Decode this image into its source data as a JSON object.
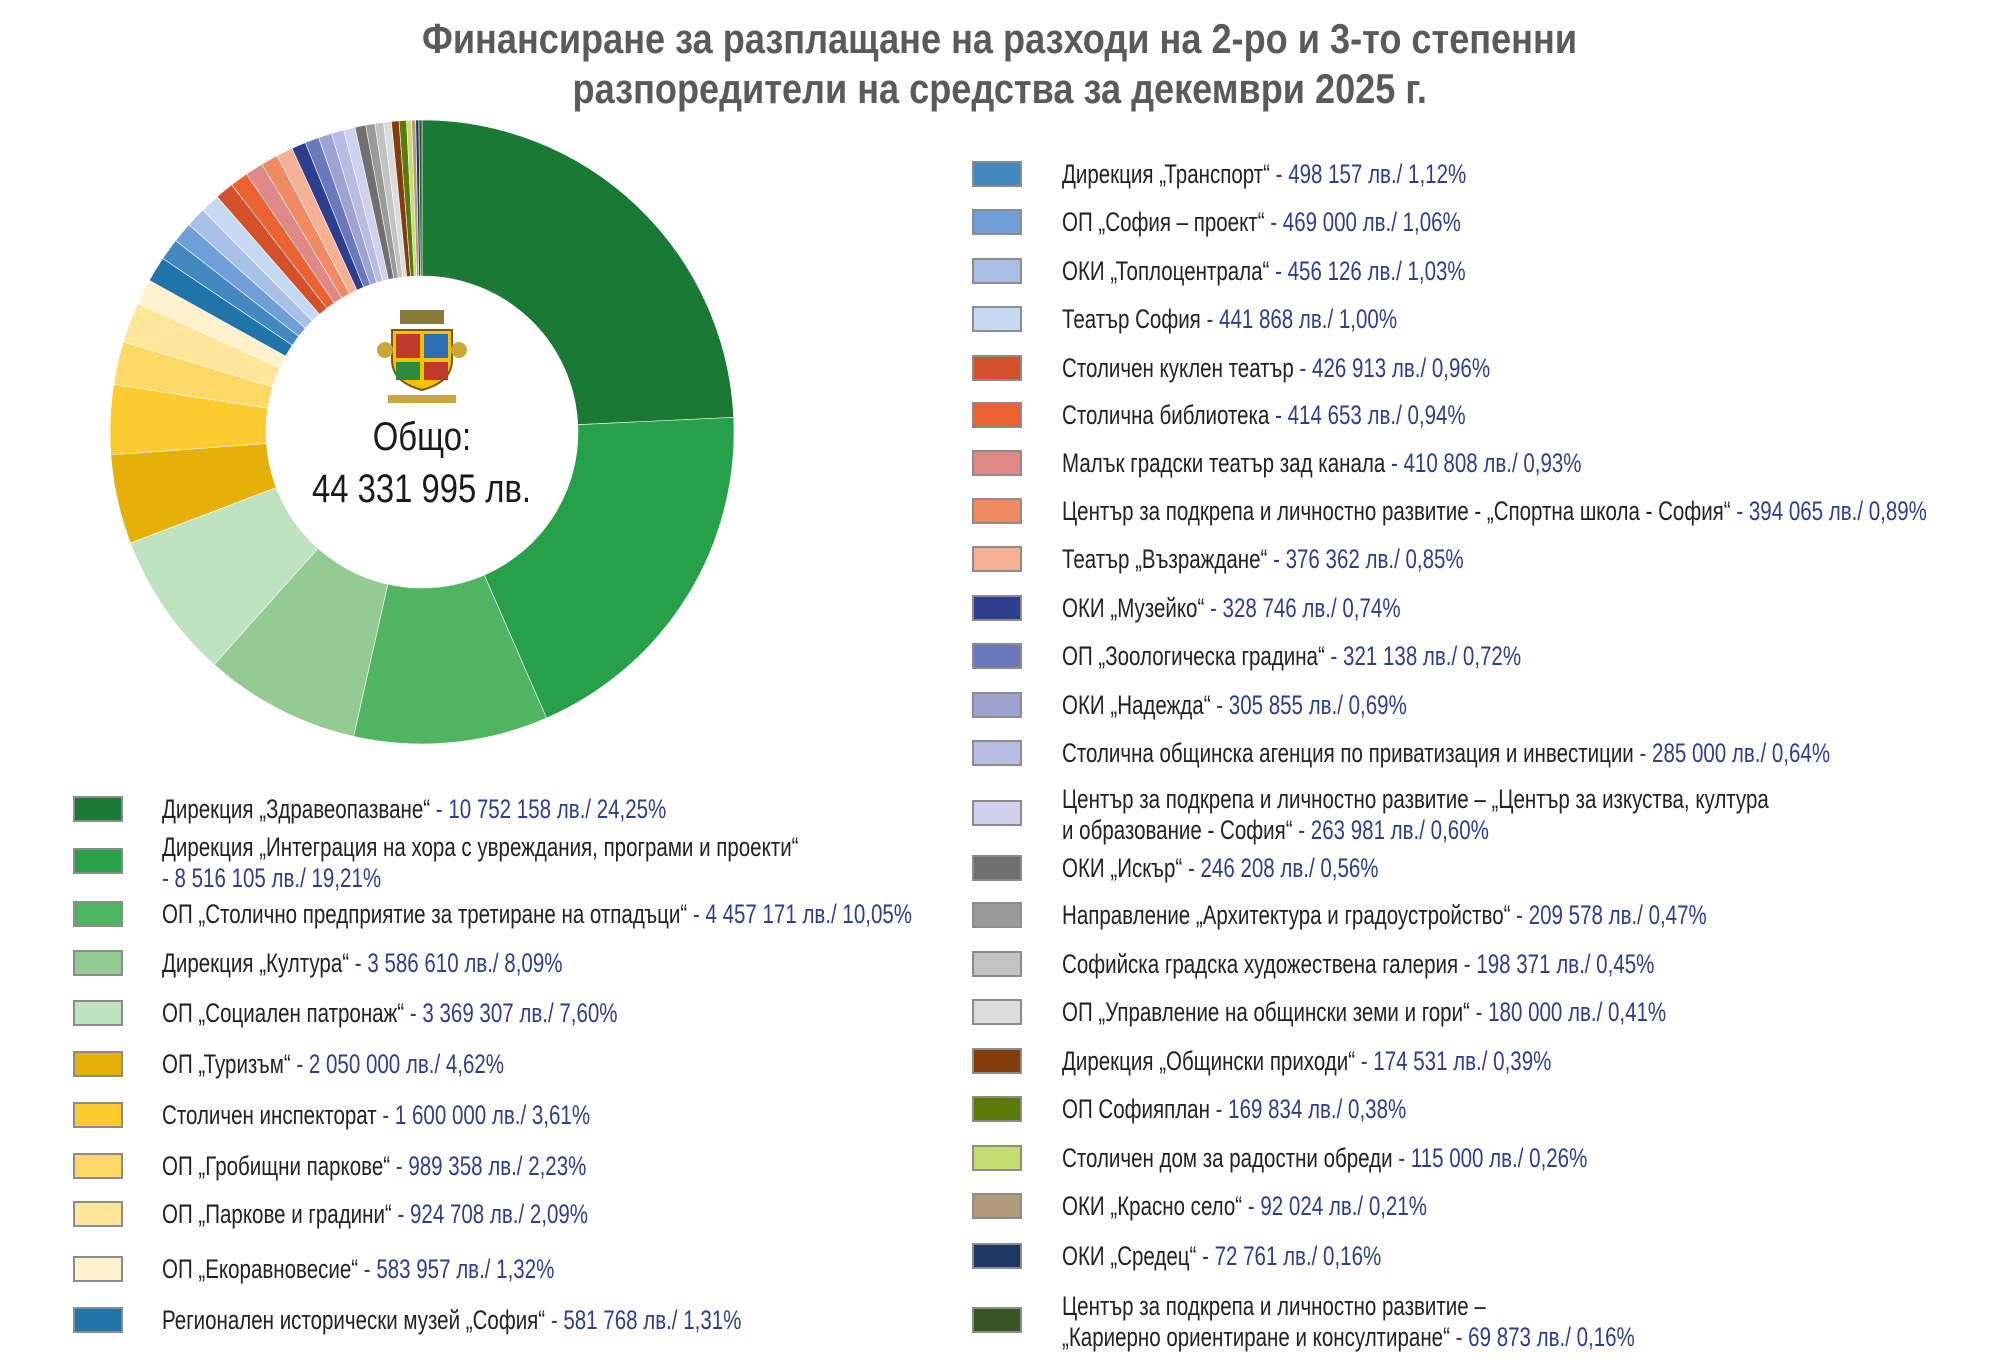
{
  "title_lines": [
    "Финансиране за разплащане на разходи на 2-ро и 3-то степенни",
    "разпоредители на средства за декември 2025 г."
  ],
  "center": {
    "label": "Общо:",
    "total": "44 331 995 лв."
  },
  "chart_data": {
    "type": "pie",
    "variant": "donut",
    "title": "Финансиране за разплащане на разходи на 2-ро и 3-то степенни разпоредители на средства за декември 2025 г.",
    "unit": "лв.",
    "total": 44331995,
    "slices": [
      {
        "name": "Дирекция „Здравеопазване“",
        "value": 10752158,
        "value_text": "- 10 752 158 лв./ 24,25%",
        "percent": 24.25,
        "color": "#1a7a35"
      },
      {
        "name": "Дирекция „Интеграция на хора с увреждания, програми и проекти“",
        "value": 8516105,
        "value_text": "- 8 516 105 лв./ 19,21%",
        "percent": 19.21,
        "color": "#27a04a",
        "value_newline": true
      },
      {
        "name": "ОП „Столично предприятие за третиране на отпадъци“",
        "value": 4457171,
        "value_text": "- 4 457 171 лв./ 10,05%",
        "percent": 10.05,
        "color": "#4fb560"
      },
      {
        "name": "Дирекция „Култура“",
        "value": 3586610,
        "value_text": "- 3 586 610 лв./ 8,09%",
        "percent": 8.09,
        "color": "#93cb93"
      },
      {
        "name": "ОП „Социален патронаж“",
        "value": 3369307,
        "value_text": "- 3 369 307 лв./ 7,60%",
        "percent": 7.6,
        "color": "#bfe2bf"
      },
      {
        "name": "ОП „Туризъм“",
        "value": 2050000,
        "value_text": "- 2 050 000 лв./ 4,62%",
        "percent": 4.62,
        "color": "#e6b00a"
      },
      {
        "name": "Столичен инспекторат",
        "value": 1600000,
        "value_text": "- 1 600 000 лв./ 3,61%",
        "percent": 3.61,
        "color": "#fdca2f"
      },
      {
        "name": "ОП „Гробищни паркове“",
        "value": 989358,
        "value_text": "- 989 358 лв./ 2,23%",
        "percent": 2.23,
        "color": "#fed966"
      },
      {
        "name": "ОП „Паркове и градини“",
        "value": 924708,
        "value_text": "- 924 708 лв./ 2,09%",
        "percent": 2.09,
        "color": "#ffe699"
      },
      {
        "name": "ОП „Екоравновесие“",
        "value": 583957,
        "value_text": "- 583 957 лв./ 1,32%",
        "percent": 1.32,
        "color": "#fff2cc"
      },
      {
        "name": "Регионален исторически музей „София“",
        "value": 581768,
        "value_text": "- 581 768 лв./ 1,31%",
        "percent": 1.31,
        "color": "#1f74a8"
      },
      {
        "name": "Дирекция „Транспорт“",
        "value": 498157,
        "value_text": "- 498 157 лв./ 1,12%",
        "percent": 1.12,
        "color": "#4389c0"
      },
      {
        "name": "ОП „София – проект“",
        "value": 469000,
        "value_text": "- 469 000 лв./ 1,06%",
        "percent": 1.06,
        "color": "#6f9fd6"
      },
      {
        "name": "ОКИ „Топлоцентрала“",
        "value": 456126,
        "value_text": "- 456 126 лв./ 1,03%",
        "percent": 1.03,
        "color": "#a8c0e6"
      },
      {
        "name": "Театър София",
        "value": 441868,
        "value_text": "- 441 868 лв./ 1,00%",
        "percent": 1.0,
        "color": "#c5daf2"
      },
      {
        "name": "Столичен куклен театър",
        "value": 426913,
        "value_text": "- 426 913 лв./ 0,96%",
        "percent": 0.96,
        "color": "#d4502a"
      },
      {
        "name": "Столична библиотека",
        "value": 414653,
        "value_text": "- 414 653 лв./ 0,94%",
        "percent": 0.94,
        "color": "#ed6232"
      },
      {
        "name": "Малък градски театър зад канала",
        "value": 410808,
        "value_text": "- 410 808 лв./ 0,93%",
        "percent": 0.93,
        "color": "#e08886"
      },
      {
        "name": "Център за подкрепа и личностно развитие - „Спортна школа - София“",
        "value": 394065,
        "value_text": "- 394 065 лв./ 0,89%",
        "percent": 0.89,
        "color": "#f08a62"
      },
      {
        "name": "Театър „Възраждане“",
        "value": 376362,
        "value_text": "- 376 362 лв./ 0,85%",
        "percent": 0.85,
        "color": "#f5b195"
      },
      {
        "name": "ОКИ „Музейко“",
        "value": 328746,
        "value_text": "- 328 746 лв./ 0,74%",
        "percent": 0.74,
        "color": "#2e3e8e"
      },
      {
        "name": "ОП „Зоологическа градина“",
        "value": 321138,
        "value_text": "- 321 138 лв./ 0,72%",
        "percent": 0.72,
        "color": "#6a78bc"
      },
      {
        "name": "ОКИ „Надежда“",
        "value": 305855,
        "value_text": "- 305 855 лв./ 0,69%",
        "percent": 0.69,
        "color": "#9ea4d2"
      },
      {
        "name": "Столична общинска агенция по приватизация и инвестиции",
        "value": 285000,
        "value_text": "- 285 000 лв./ 0,64%",
        "percent": 0.64,
        "color": "#b6bce2"
      },
      {
        "name": "Център за подкрепа и личностно развитие – „Център за изкуства, култура",
        "name_cont": "и образование - София“",
        "value": 263981,
        "value_text": "- 263 981 лв./ 0,60%",
        "percent": 0.6,
        "color": "#cfd1ed",
        "value_newline": true
      },
      {
        "name": "ОКИ „Искър“",
        "value": 246208,
        "value_text": "- 246 208 лв./ 0,56%",
        "percent": 0.56,
        "color": "#707070"
      },
      {
        "name": "Направление „Архитектура и градоустройство“",
        "value": 209578,
        "value_text": "- 209 578 лв./ 0,47%",
        "percent": 0.47,
        "color": "#9a9a9a"
      },
      {
        "name": "Софийска градска художествена галерия",
        "value": 198371,
        "value_text": "- 198 371 лв./ 0,45%",
        "percent": 0.45,
        "color": "#c3c3c3"
      },
      {
        "name": "ОП „Управление на общински земи и гори“",
        "value": 180000,
        "value_text": "- 180 000 лв./ 0,41%",
        "percent": 0.41,
        "color": "#dcdcdc"
      },
      {
        "name": "Дирекция „Общински приходи“",
        "value": 174531,
        "value_text": "- 174 531 лв./ 0,39%",
        "percent": 0.39,
        "color": "#843c0c"
      },
      {
        "name": "ОП Софияплан",
        "value": 169834,
        "value_text": "- 169 834 лв./ 0,38%",
        "percent": 0.38,
        "color": "#5b7a08"
      },
      {
        "name": "Столичен дом за радостни обреди",
        "value": 115000,
        "value_text": "- 115 000 лв./ 0,26%",
        "percent": 0.26,
        "color": "#c3de6e"
      },
      {
        "name": "ОКИ „Красно село“",
        "value": 92024,
        "value_text": "- 92 024 лв./ 0,21%",
        "percent": 0.21,
        "color": "#b19a7a"
      },
      {
        "name": "ОКИ „Средец“",
        "value": 72761,
        "value_text": "- 72 761 лв./ 0,16%",
        "percent": 0.16,
        "color": "#1f3864"
      },
      {
        "name": "Център за подкрепа и личностно развитие –",
        "name_cont": "„Кариерно ориентиране и консултиране“",
        "value": 69873,
        "value_text": "- 69 873 лв./ 0,16%",
        "percent": 0.16,
        "color": "#375623",
        "value_newline": true
      }
    ]
  }
}
